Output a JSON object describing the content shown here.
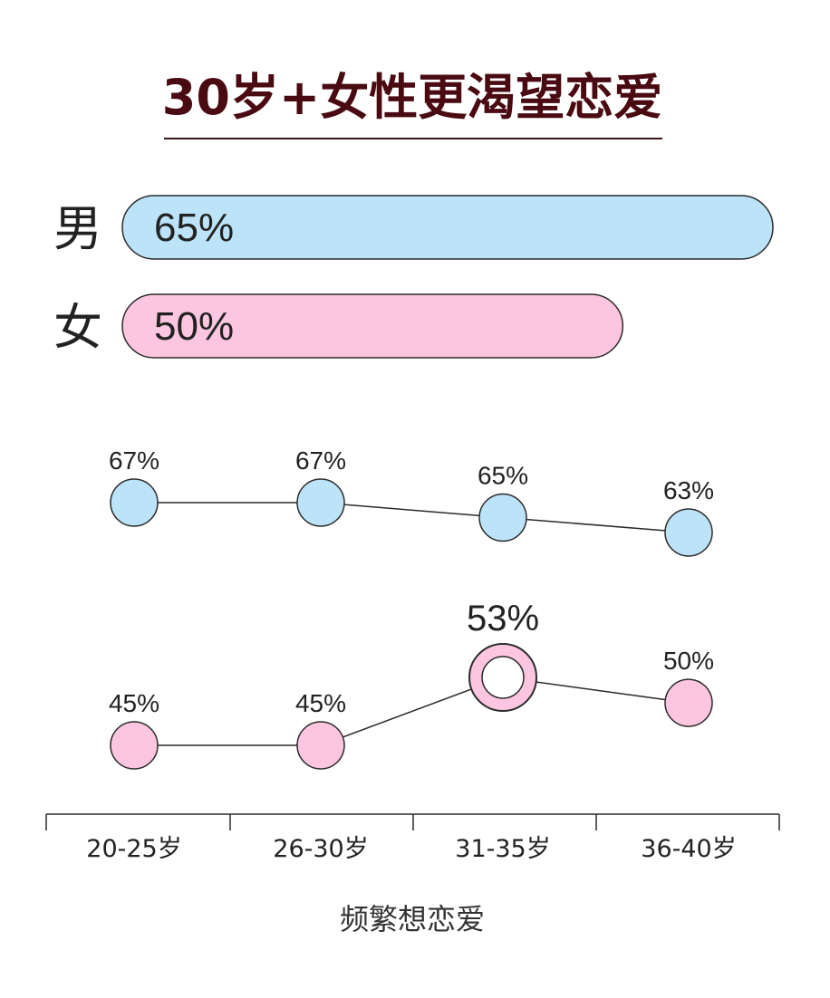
{
  "title": "30岁+女性更渴望恋爱",
  "colors": {
    "title": "#4a0a12",
    "underline": "#3a1a1a",
    "male_fill": "#bde3f8",
    "female_fill": "#fcc6e0",
    "stroke": "#2b2b2b",
    "text": "#222222"
  },
  "chart_data": [
    {
      "type": "bar",
      "orientation": "horizontal",
      "categories": [
        "男",
        "女"
      ],
      "values": [
        65,
        50
      ],
      "value_labels": [
        "65%",
        "50%"
      ],
      "unit": "%"
    },
    {
      "type": "line",
      "categories": [
        "20-25岁",
        "26-30岁",
        "31-35岁",
        "36-40岁"
      ],
      "xlabel": "频繁想恋爱",
      "series": [
        {
          "values": [
            67,
            67,
            65,
            63
          ],
          "labels": [
            "67%",
            "67%",
            "65%",
            "63%"
          ],
          "color": "#bde3f8"
        },
        {
          "values": [
            45,
            45,
            53,
            50
          ],
          "labels": [
            "45%",
            "45%",
            "53%",
            "50%"
          ],
          "color": "#fcc6e0",
          "highlight_index": 2
        }
      ]
    }
  ]
}
